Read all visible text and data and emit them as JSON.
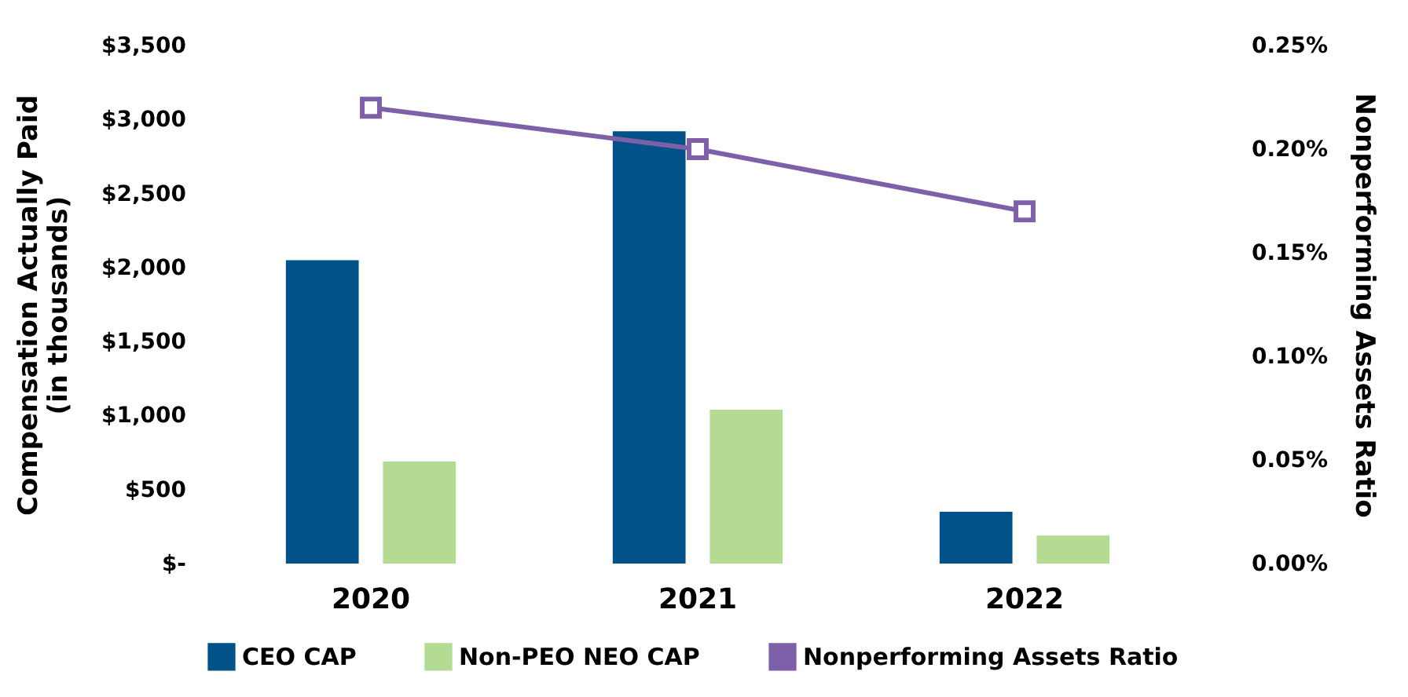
{
  "chart_data": {
    "type": "bar",
    "ylabel": "Compensation Actually Paid\n(in thousands)",
    "y2label": "Nonperforming Assets Ratio",
    "categories": [
      "2020",
      "2021",
      "2022"
    ],
    "series": [
      {
        "name": "CEO CAP",
        "color": "#005288",
        "values": [
          2050,
          2920,
          350
        ]
      },
      {
        "name": "Non-PEO NEO CAP",
        "color": "#b3dc92",
        "values": [
          690,
          1040,
          190
        ]
      },
      {
        "name": "Nonperforming Assets Ratio",
        "type": "line",
        "axis": "y2",
        "color": "#7e60a8",
        "values": [
          0.22,
          0.2,
          0.17
        ]
      }
    ],
    "ylim": [
      0,
      3500
    ],
    "yticks": [
      {
        "value": 0,
        "label": "$-"
      },
      {
        "value": 500,
        "label": "$500"
      },
      {
        "value": 1000,
        "label": "$1,000"
      },
      {
        "value": 1500,
        "label": "$1,500"
      },
      {
        "value": 2000,
        "label": "$2,000"
      },
      {
        "value": 2500,
        "label": "$2,500"
      },
      {
        "value": 3000,
        "label": "$3,000"
      },
      {
        "value": 3500,
        "label": "$3,500"
      }
    ],
    "y2lim": [
      0,
      0.25
    ],
    "y2ticks": [
      {
        "value": 0,
        "label": "0.00%"
      },
      {
        "value": 0.05,
        "label": "0.05%"
      },
      {
        "value": 0.1,
        "label": "0.10%"
      },
      {
        "value": 0.15,
        "label": "0.15%"
      },
      {
        "value": 0.2,
        "label": "0.20%"
      },
      {
        "value": 0.25,
        "label": "0.25%"
      }
    ],
    "marker": "square",
    "legend": "bottom",
    "grid": false
  }
}
